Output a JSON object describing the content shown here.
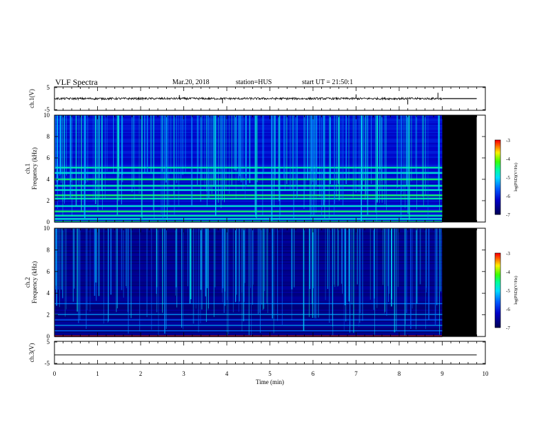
{
  "header": {
    "title": "VLF Spectra",
    "date": "Mar.20, 2018",
    "station": "station=HUS",
    "start": "start UT = 21:50:1"
  },
  "chart_data": [
    {
      "type": "line",
      "title": "",
      "ylabel": "ch.1(V)",
      "ylim": [
        -5,
        5
      ],
      "yticks": [
        "5",
        "-5"
      ],
      "series": [
        {
          "values": "noisy trace near 0 V for t = 0 to 9 min, with occasional spikes up to about 2.5 V; flat line at 0 V from 9 to 9.8 min"
        }
      ],
      "xlim": [
        0,
        10
      ]
    },
    {
      "type": "heatmap",
      "title": "",
      "ylabel": "ch.1\nFrequency (kHz)",
      "ylim": [
        0,
        10
      ],
      "yticks": [
        "0",
        "2",
        "4",
        "6",
        "8",
        "10"
      ],
      "xlim": [
        0,
        10
      ],
      "data_end_min": 9.0,
      "record_end_min": 9.8,
      "colorbar": {
        "label": "log(PSD)(V²/Hz)",
        "range": [
          -7,
          -3
        ],
        "ticks": [
          "-3",
          "-4",
          "-5",
          "-6",
          "-7"
        ]
      },
      "bands_khz": [
        0.3,
        0.6,
        1.0,
        1.5,
        2.2,
        2.5,
        3.0,
        3.4,
        4.0,
        4.6,
        5.1
      ]
    },
    {
      "type": "heatmap",
      "title": "",
      "ylabel": "ch.2\nFrequency (kHz)",
      "ylim": [
        0,
        10
      ],
      "yticks": [
        "0",
        "2",
        "4",
        "6",
        "8",
        "10"
      ],
      "xlim": [
        0,
        10
      ],
      "data_end_min": 9.0,
      "record_end_min": 9.8,
      "colorbar": {
        "label": "log(PSD)(V²/Hz)",
        "range": [
          -7,
          -3
        ],
        "ticks": [
          "-3",
          "-4",
          "-5",
          "-6",
          "-7"
        ]
      },
      "bands_khz": [
        0.5,
        1.0,
        1.5,
        2.0,
        3.0
      ]
    },
    {
      "type": "line",
      "title": "",
      "ylabel": "ch.3(V)",
      "xlabel": "Time (min)",
      "ylim": [
        -5,
        5
      ],
      "yticks": [
        "5",
        "-5"
      ],
      "xticks": [
        "0",
        "1",
        "2",
        "3",
        "4",
        "5",
        "6",
        "7",
        "8",
        "9",
        "10"
      ],
      "xlim": [
        0,
        10
      ],
      "series": [
        {
          "values": "flat line at about -1 V from t = 0 to 9.8 min"
        }
      ]
    }
  ]
}
